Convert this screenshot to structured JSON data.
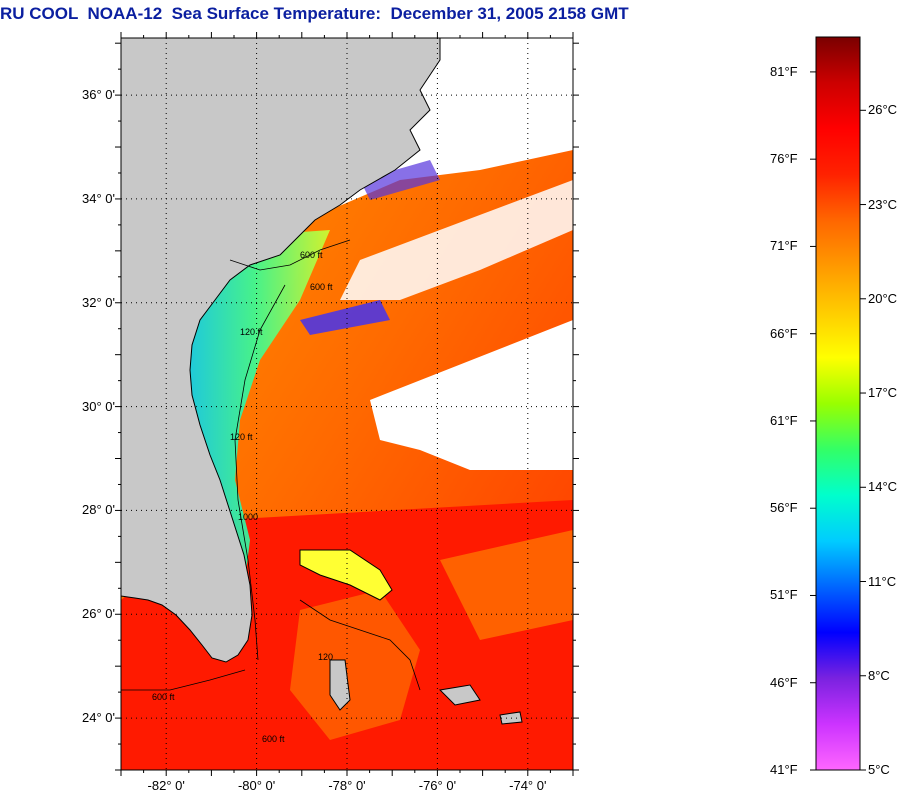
{
  "title": "RU COOL  NOAA-12  Sea Surface Temperature:  December 31, 2005 2158 GMT",
  "map": {
    "lat_labels": [
      "36° 0'",
      "34° 0'",
      "32° 0'",
      "30° 0'",
      "28° 0'",
      "26° 0'",
      "24° 0'"
    ],
    "lon_labels": [
      "-82° 0'",
      "-80° 0'",
      "-78° 0'",
      "-76° 0'",
      "-74° 0'"
    ],
    "lat_range": [
      23.0,
      37.1
    ],
    "lon_range": [
      -83.0,
      -73.0
    ],
    "contour_labels": [
      "600 ft",
      "120 ft",
      "1000",
      "600 ft",
      "120 ft",
      "600 ft",
      "120",
      "600 ft"
    ],
    "colors": {
      "land": "#c8c8c8",
      "cloud": "#ffffff",
      "coast": "#000000",
      "grid": "#000000"
    }
  },
  "colorbar": {
    "fahrenheit_labels": [
      "81°F",
      "76°F",
      "71°F",
      "66°F",
      "61°F",
      "56°F",
      "51°F",
      "46°F",
      "41°F"
    ],
    "celsius_labels": [
      "26°C",
      "23°C",
      "20°C",
      "17°C",
      "14°C",
      "11°C",
      "8°C",
      "5°C"
    ],
    "fahrenheit_range": [
      41,
      83
    ],
    "colors": [
      "#ff66ff",
      "#cc33ff",
      "#7a22e0",
      "#0000ff",
      "#0066ff",
      "#00ccff",
      "#00ffcc",
      "#33ff66",
      "#99ff00",
      "#ffff00",
      "#ffcc00",
      "#ff9900",
      "#ff6600",
      "#ff2200",
      "#ff0000",
      "#cc0000",
      "#7a0000"
    ]
  }
}
